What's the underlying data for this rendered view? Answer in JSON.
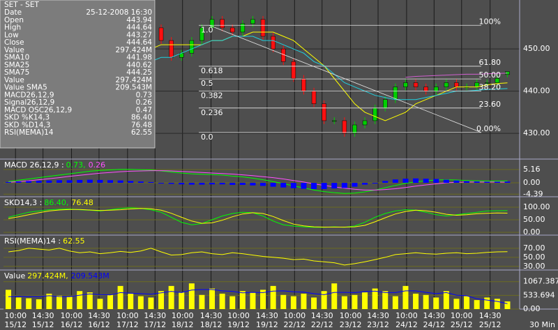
{
  "info_box": {
    "title": "SET - SET",
    "rows": [
      {
        "label": "Date",
        "value": "25-12-2008 16:30",
        "color": "#000000"
      },
      {
        "label": "Open",
        "value": "443.94",
        "color": "#000000"
      },
      {
        "label": "High",
        "value": "444.64",
        "color": "#000000"
      },
      {
        "label": "Low",
        "value": "443.27",
        "color": "#000000"
      },
      {
        "label": "Close",
        "value": "444.64",
        "color": "#000000"
      },
      {
        "label": "Value",
        "value": "297.424M",
        "color": "#000000"
      },
      {
        "label": "SMA10",
        "value": "441.98",
        "color": "#ffff00"
      },
      {
        "label": "SMA25",
        "value": "440.62",
        "color": "#00ffff"
      },
      {
        "label": "SMA75",
        "value": "444.25",
        "color": "#ff40ff"
      },
      {
        "label": "Value",
        "value": "297.424M",
        "color": "#ffff00"
      },
      {
        "label": "Value SMA5",
        "value": "209.543M",
        "color": "#0000ff"
      },
      {
        "label": "MACD26,12,9",
        "value": "0.73",
        "color": "#00ff00"
      },
      {
        "label": "Signal26,12,9",
        "value": "0.26",
        "color": "#ff40ff"
      },
      {
        "label": "MACD OSC26,12,9",
        "value": "0.47",
        "color": "#0000ff"
      },
      {
        "label": "SKD %K14,3",
        "value": "86.40",
        "color": "#00ff00"
      },
      {
        "label": "SKD %D14,3",
        "value": "76.48",
        "color": "#ffff00"
      },
      {
        "label": "RSI(MEMA)14",
        "value": "62.55",
        "color": "#ffff00"
      }
    ]
  },
  "chart_data": [
    {
      "type": "candlestick",
      "xlim": [
        -0.48,
        50.2
      ],
      "ylim": [
        423.9,
        461.6
      ],
      "yticks": [
        {
          "value": 430,
          "label": "430.00"
        },
        {
          "value": 440,
          "label": "440.00"
        },
        {
          "value": 450,
          "label": "450.00"
        }
      ],
      "grid": true,
      "up_color": "#00d000",
      "down_color": "#ff1010",
      "open": [
        430,
        431,
        433,
        436,
        438,
        440,
        442,
        445,
        447,
        449,
        450,
        451,
        452,
        451,
        453,
        455,
        452,
        448,
        449,
        452,
        455,
        457,
        455,
        454,
        456,
        457,
        453,
        450,
        447,
        443,
        440,
        437,
        433,
        433,
        430,
        432,
        433,
        436,
        438,
        441,
        442,
        441,
        440,
        441,
        442,
        441,
        441,
        442,
        442,
        443.94
      ],
      "high": [
        431.8,
        433.8,
        436.8,
        438.8,
        440.8,
        442.8,
        445.8,
        447.8,
        449.8,
        450.8,
        451.8,
        452.8,
        452.8,
        453.8,
        455.8,
        455.8,
        452.8,
        449.8,
        452.8,
        455.8,
        457.8,
        457.8,
        455.8,
        456.8,
        457.8,
        457.8,
        453.8,
        450.8,
        447.8,
        443.8,
        440.8,
        437.8,
        433.8,
        433.8,
        432.8,
        433.8,
        436.8,
        438.8,
        441.8,
        442.8,
        442.8,
        441.8,
        441.8,
        442.8,
        442.8,
        441.8,
        442.8,
        442.8,
        443.8,
        444.64
      ],
      "low": [
        429.2,
        430.2,
        432.2,
        435.2,
        437.2,
        439.2,
        441.2,
        444.2,
        446.2,
        448.2,
        449.2,
        450.2,
        450.2,
        450.2,
        452.2,
        451.2,
        447.2,
        447.2,
        448.2,
        451.2,
        454.2,
        454.2,
        453.2,
        453.2,
        455.2,
        452.2,
        449.2,
        446.2,
        442.2,
        439.2,
        436.2,
        432.2,
        432.2,
        429.2,
        429.2,
        431.2,
        432.2,
        435.2,
        437.2,
        440.2,
        440.2,
        439.2,
        439.2,
        440.2,
        440.2,
        440.2,
        440.2,
        441.2,
        441.2,
        443.27
      ],
      "close": [
        431,
        433,
        436,
        438,
        440,
        442,
        445,
        447,
        449,
        450,
        451,
        452,
        451,
        453,
        455,
        452,
        448,
        449,
        452,
        455,
        457,
        455,
        454,
        456,
        457,
        453,
        450,
        447,
        443,
        440,
        437,
        433,
        433,
        430,
        432,
        433,
        436,
        438,
        441,
        442,
        441,
        440,
        441,
        442,
        441,
        441,
        442,
        442,
        443,
        444.64
      ],
      "series": [
        {
          "style": "line",
          "color": "#ffff00",
          "values": [
            428,
            429,
            430,
            432,
            433,
            435,
            437,
            439,
            441,
            443,
            445,
            447,
            448,
            449,
            450,
            451,
            451,
            451,
            451,
            451,
            452,
            452,
            453,
            453,
            454,
            454,
            454,
            453,
            452,
            450,
            448,
            446,
            443,
            440,
            437,
            435,
            434,
            433,
            434,
            435,
            437,
            438,
            439,
            440,
            441,
            441,
            441,
            441.5,
            441.8,
            441.98
          ]
        },
        {
          "style": "line",
          "color": "#20d0e0",
          "values": [
            435,
            435,
            436,
            437,
            437,
            438,
            439,
            440,
            441,
            442,
            443,
            444,
            445,
            446,
            447,
            448,
            448,
            449,
            450,
            451,
            452,
            452,
            453,
            453,
            453,
            452,
            452,
            451,
            450,
            449,
            447,
            446,
            444,
            442,
            441,
            440,
            439,
            438.5,
            438,
            438,
            438,
            438.5,
            439,
            439.5,
            440,
            440,
            440.2,
            440.4,
            440.5,
            440.62
          ]
        },
        {
          "style": "line",
          "color": "#d060d0",
          "values": [
            null,
            null,
            null,
            null,
            null,
            null,
            null,
            null,
            null,
            null,
            null,
            null,
            null,
            null,
            null,
            null,
            null,
            null,
            null,
            null,
            null,
            null,
            null,
            null,
            null,
            null,
            null,
            null,
            null,
            null,
            null,
            null,
            null,
            null,
            null,
            null,
            null,
            null,
            null,
            443.3,
            443.5,
            443.6,
            443.7,
            443.8,
            443.9,
            444,
            444,
            444.1,
            444.2,
            444.25
          ]
        }
      ],
      "fib_levels": [
        {
          "value": 455.6,
          "ratio": "1.0",
          "label": "100%"
        },
        {
          "value": 445.9,
          "ratio": "0.618",
          "label": "61.80"
        },
        {
          "value": 442.9,
          "ratio": "0.5",
          "label": "50.00"
        },
        {
          "value": 440.0,
          "ratio": "0.382",
          "label": "38.20"
        },
        {
          "value": 436.0,
          "ratio": "0.236",
          "label": "23.60"
        },
        {
          "value": 430.2,
          "ratio": "0.0",
          "label": "0.00%"
        }
      ]
    },
    {
      "type": "line",
      "header": "MACD 26,12,9 :",
      "legend_values": [
        "0.73,",
        "0.26"
      ],
      "ylim": [
        -5.4,
        9.2
      ],
      "yticks": [
        5.16,
        {
          "value": 0,
          "label": "0.00"
        },
        -4.39
      ],
      "grid": true,
      "series": [
        {
          "style": "line",
          "color": "#00ff00",
          "values": [
            0.5,
            1,
            1.5,
            2,
            2.5,
            3,
            3.5,
            4,
            4.5,
            4.8,
            5,
            5.2,
            5.2,
            5.1,
            5.0,
            4.6,
            4.2,
            3.8,
            3.5,
            3.3,
            3.2,
            3.0,
            2.6,
            2.3,
            1.8,
            1.2,
            0.5,
            -0.3,
            -1.2,
            -2.0,
            -2.8,
            -3.4,
            -3.8,
            -4.1,
            -4.0,
            -3.5,
            -2.8,
            -1.9,
            -1.0,
            -0.2,
            0.4,
            0.8,
            1.1,
            1.2,
            1.1,
            0.9,
            0.8,
            0.7,
            0.7,
            0.73
          ]
        },
        {
          "style": "line",
          "color": "#ff50ff",
          "values": [
            0.2,
            0.5,
            0.8,
            1.2,
            1.6,
            2.0,
            2.5,
            2.9,
            3.3,
            3.7,
            4.0,
            4.3,
            4.5,
            4.6,
            4.7,
            4.7,
            4.6,
            4.4,
            4.2,
            4.0,
            3.8,
            3.6,
            3.4,
            3.1,
            2.8,
            2.4,
            2.0,
            1.5,
            0.9,
            0.3,
            -0.4,
            -1.0,
            -1.6,
            -2.1,
            -2.5,
            -2.8,
            -2.8,
            -2.6,
            -2.3,
            -1.8,
            -1.3,
            -0.8,
            -0.4,
            0,
            0.2,
            0.3,
            0.3,
            0.3,
            0.3,
            0.26
          ]
        },
        {
          "style": "bar",
          "color": "#0000ff",
          "values": [
            0.3,
            0.5,
            0.7,
            0.8,
            0.9,
            1,
            1,
            1.1,
            1.2,
            1.1,
            1,
            0.9,
            0.7,
            0.5,
            0.3,
            -0.1,
            -0.4,
            -0.6,
            -0.7,
            -0.7,
            -0.6,
            -0.6,
            -0.8,
            -0.8,
            -1,
            -1.2,
            -1.5,
            -1.8,
            -2.1,
            -2.3,
            -2.4,
            -2.4,
            -2.2,
            -2,
            -1.5,
            -0.7,
            0,
            0.7,
            1.3,
            1.6,
            1.7,
            1.6,
            1.5,
            1.2,
            0.9,
            0.6,
            0.5,
            0.4,
            0.4,
            0.47
          ]
        }
      ]
    },
    {
      "type": "line",
      "header": "SKD14,3 :",
      "legend_values": [
        "86.40,",
        "76.48"
      ],
      "ylim": [
        -11,
        141.7
      ],
      "yticks": [
        {
          "value": 100,
          "label": "100.00"
        },
        {
          "value": 50,
          "label": "50.00"
        },
        {
          "value": 0,
          "label": "0.00"
        }
      ],
      "grid": true,
      "series": [
        {
          "style": "line",
          "color": "#00ff00",
          "values": [
            60,
            70,
            80,
            85,
            90,
            92,
            93,
            90,
            88,
            85,
            90,
            95,
            98,
            95,
            90,
            80,
            60,
            40,
            30,
            35,
            50,
            65,
            75,
            80,
            78,
            65,
            45,
            30,
            25,
            22,
            20,
            20,
            22,
            20,
            25,
            40,
            60,
            75,
            85,
            90,
            88,
            80,
            70,
            65,
            70,
            75,
            80,
            85,
            86,
            86.4
          ]
        },
        {
          "style": "line",
          "color": "#ffff00",
          "values": [
            55,
            62,
            70,
            78,
            85,
            89,
            91,
            91,
            89,
            87,
            88,
            90,
            93,
            95,
            94,
            88,
            76,
            60,
            45,
            36,
            38,
            48,
            62,
            73,
            78,
            75,
            63,
            47,
            33,
            26,
            22,
            21,
            21,
            21,
            22,
            28,
            42,
            58,
            73,
            83,
            88,
            86,
            80,
            72,
            68,
            70,
            74,
            76,
            77,
            76.48
          ]
        }
      ]
    },
    {
      "type": "line",
      "header": "RSI(MEMA)14 :",
      "legend_values": [
        "62.55"
      ],
      "ylim": [
        22,
        99
      ],
      "yticks": [
        {
          "value": 70,
          "label": "70.00"
        },
        {
          "value": 50,
          "label": "50.00"
        },
        {
          "value": 30,
          "label": "30.00"
        }
      ],
      "grid": true,
      "series": [
        {
          "style": "line",
          "color": "#ffff00",
          "values": [
            62,
            65,
            70,
            68,
            66,
            70,
            64,
            60,
            62,
            58,
            60,
            63,
            61,
            64,
            70,
            62,
            55,
            56,
            60,
            62,
            58,
            56,
            60,
            58,
            55,
            52,
            50,
            48,
            45,
            46,
            42,
            40,
            38,
            33,
            36,
            40,
            45,
            50,
            56,
            58,
            60,
            58,
            57,
            59,
            60,
            58,
            59,
            61,
            62,
            62.55
          ]
        }
      ]
    },
    {
      "type": "bar",
      "header": "Value",
      "legend_values": [
        "297.424M,",
        "209.543M"
      ],
      "ylim": [
        0,
        1521
      ],
      "yticks": [
        1067.387,
        533.694,
        {
          "value": 0,
          "label": "0.00"
        }
      ],
      "grid": true,
      "series": [
        {
          "style": "bar",
          "color": "#ffff00",
          "values": [
            750,
            450,
            420,
            380,
            600,
            520,
            480,
            700,
            650,
            400,
            550,
            900,
            600,
            500,
            450,
            700,
            900,
            650,
            1000,
            550,
            800,
            600,
            500,
            700,
            650,
            750,
            900,
            550,
            500,
            600,
            450,
            700,
            1000,
            500,
            550,
            650,
            800,
            700,
            500,
            900,
            600,
            550,
            450,
            700,
            400,
            500,
            350,
            450,
            400,
            297.424
          ]
        },
        {
          "style": "line",
          "color": "#0000ff",
          "values": [
            480,
            500,
            490,
            480,
            520,
            490,
            480,
            540,
            590,
            560,
            550,
            640,
            620,
            600,
            580,
            630,
            690,
            640,
            740,
            760,
            760,
            710,
            690,
            630,
            650,
            640,
            700,
            710,
            670,
            660,
            600,
            560,
            650,
            650,
            640,
            680,
            700,
            640,
            640,
            710,
            710,
            650,
            600,
            640,
            540,
            520,
            400,
            350,
            300,
            209.543
          ]
        }
      ],
      "xticks": [
        {
          "value": 0.7,
          "label": "10:00"
        },
        {
          "value": 3.4,
          "label": "14:30"
        },
        {
          "value": 6.2,
          "label": "10:00"
        },
        {
          "value": 8.9,
          "label": "14:30"
        },
        {
          "value": 11.7,
          "label": "10:00"
        },
        {
          "value": 14.4,
          "label": "14:30"
        },
        {
          "value": 17.1,
          "label": "10:00"
        },
        {
          "value": 19.9,
          "label": "14:30"
        },
        {
          "value": 22.6,
          "label": "10:00"
        },
        {
          "value": 25.4,
          "label": "14:30"
        },
        {
          "value": 28.1,
          "label": "10:00"
        },
        {
          "value": 30.8,
          "label": "14:30"
        },
        {
          "value": 33.6,
          "label": "10:00"
        },
        {
          "value": 36.3,
          "label": "14:30"
        },
        {
          "value": 39.1,
          "label": "10:00"
        },
        {
          "value": 41.8,
          "label": "14:30"
        },
        {
          "value": 44.5,
          "label": "10:00"
        },
        {
          "value": 47.3,
          "label": "14:30"
        }
      ],
      "xtick_dates": [
        "15/12",
        "15/12",
        "16/12",
        "16/12",
        "17/12",
        "17/12",
        "18/12",
        "18/12",
        "19/12",
        "19/12",
        "22/12",
        "22/12",
        "23/12",
        "23/12",
        "24/12",
        "24/12",
        "25/12",
        "25/12"
      ],
      "interval": "30 Min"
    }
  ]
}
